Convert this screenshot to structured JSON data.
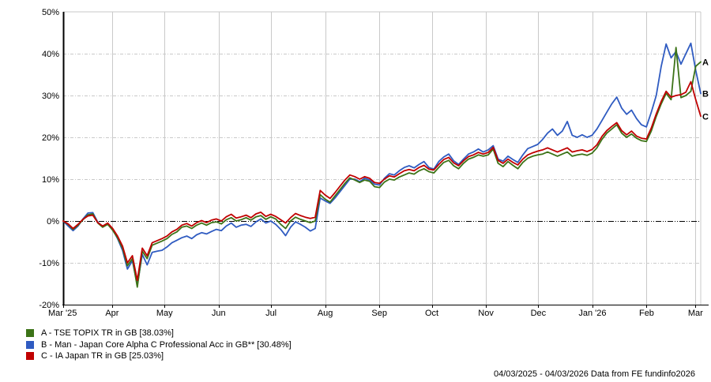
{
  "chart_data": {
    "type": "line",
    "footer": "04/03/2025 - 04/03/2026 Data from FE fundinfo2026",
    "colors": {
      "grid": "#c9c9c9",
      "axis": "#000000",
      "zero_line": "#000000",
      "background": "#ffffff"
    },
    "y_axis": {
      "unit": "%",
      "ylim": [
        -20,
        50
      ],
      "tick_values": [
        50,
        40,
        30,
        20,
        10,
        0,
        -10,
        -20
      ],
      "tick_labels": [
        "50%",
        "40%",
        "30%",
        "20%",
        "10%",
        "0%",
        "-10%",
        "-20%"
      ]
    },
    "x_axis": {
      "tick_labels": [
        "Mar '25",
        "Apr",
        "May",
        "Jun",
        "Jul",
        "Aug",
        "Sep",
        "Oct",
        "Nov",
        "Dec",
        "Jan '26",
        "Feb",
        "Mar"
      ],
      "tick_days": [
        0,
        28,
        58,
        89,
        119,
        150,
        181,
        211,
        242,
        272,
        303,
        334,
        362
      ],
      "span_days": 365
    },
    "series": [
      {
        "key": "A",
        "name": "TSE TOPIX TR in GB",
        "legend_label": "A - TSE TOPIX TR in GB [38.03%]",
        "final_value": 38.03,
        "color": "#3c7317",
        "values": [
          0,
          -0.8,
          -2,
          -1,
          0.3,
          1.5,
          1.7,
          -0.5,
          -1.5,
          -0.8,
          -2.2,
          -4,
          -6.5,
          -10.7,
          -9,
          -15.8,
          -7.2,
          -9,
          -5.8,
          -5.3,
          -4.8,
          -4.2,
          -3.2,
          -2.6,
          -1.5,
          -1.2,
          -1.8,
          -1,
          -0.5,
          -1,
          -0.4,
          -0.2,
          -0.7,
          0.3,
          0.8,
          0,
          0.3,
          0.8,
          0.2,
          1,
          1.3,
          0.4,
          1,
          0.5,
          -0.8,
          -1.8,
          0,
          0.9,
          0.4,
          0,
          -0.4,
          0,
          6.3,
          5.2,
          4.5,
          6,
          7.5,
          9,
          10.3,
          9.8,
          9.2,
          9.8,
          9.5,
          8.2,
          8,
          9.3,
          10,
          9.8,
          10.5,
          11,
          11.5,
          11.2,
          12,
          12.5,
          11.8,
          11.5,
          12.8,
          14,
          14.5,
          13.2,
          12.5,
          13.8,
          14.8,
          15.2,
          15.8,
          15.5,
          15.8,
          17.2,
          13.8,
          13,
          14.2,
          13.3,
          12.5,
          14,
          15,
          15.5,
          15.8,
          16,
          16.5,
          16,
          15.5,
          16,
          16.5,
          15.5,
          15.8,
          16,
          15.7,
          16.2,
          17.5,
          19.5,
          21,
          22,
          23,
          21,
          20,
          20.8,
          19.8,
          19.2,
          19,
          21.5,
          25,
          28,
          30.5,
          29,
          41.5,
          29.5,
          30,
          31,
          37,
          38.03
        ]
      },
      {
        "key": "B",
        "name": "Man - Japan Core Alpha C Professional Acc in GB**",
        "legend_label": "B - Man - Japan Core Alpha C Professional Acc in GB** [30.48%]",
        "final_value": 30.48,
        "color": "#2f5bc1",
        "values": [
          0,
          -1.2,
          -2.3,
          -1.2,
          0.5,
          1.9,
          2,
          -0.3,
          -1.3,
          -0.6,
          -2,
          -4.2,
          -7,
          -11.5,
          -9.5,
          -15.3,
          -8,
          -10.5,
          -7.5,
          -7.2,
          -7,
          -6.2,
          -5.2,
          -4.6,
          -4,
          -3.6,
          -4.2,
          -3.3,
          -2.8,
          -3.1,
          -2.5,
          -2,
          -2.3,
          -1.2,
          -0.5,
          -1.5,
          -1,
          -0.8,
          -1.3,
          -0.2,
          0.5,
          -0.5,
          0,
          -0.8,
          -2,
          -3.5,
          -1.5,
          -0.2,
          -0.8,
          -1.5,
          -2.4,
          -1.8,
          5.5,
          4.8,
          4.2,
          5.5,
          7,
          8.5,
          10,
          10,
          9.4,
          10.2,
          9.8,
          8.8,
          8.6,
          10.2,
          11.3,
          11,
          12,
          12.8,
          13.2,
          12.7,
          13.5,
          14.2,
          12.8,
          12.4,
          14.2,
          15.3,
          16,
          14.4,
          13.5,
          14.8,
          16,
          16.5,
          17.2,
          16.5,
          17,
          18,
          14.8,
          14.3,
          15.5,
          14.7,
          14,
          15.8,
          17.3,
          17.8,
          18.3,
          19.5,
          21,
          22,
          20.5,
          21.5,
          23.8,
          20.5,
          20,
          20.6,
          20,
          20.5,
          22,
          24,
          26,
          28,
          29.6,
          27,
          25.5,
          26.5,
          24.5,
          23,
          22.5,
          26,
          30,
          37,
          42.3,
          39,
          40.5,
          37.5,
          40,
          42.5,
          36,
          30.48
        ]
      },
      {
        "key": "C",
        "name": "IA Japan TR in GB",
        "legend_label": "C - IA Japan TR in GB [25.03%]",
        "final_value": 25.03,
        "color": "#c00000",
        "values": [
          0,
          -0.7,
          -1.8,
          -0.8,
          0.4,
          1.2,
          1.4,
          -0.4,
          -1.2,
          -0.5,
          -1.8,
          -3.6,
          -6,
          -10,
          -8.3,
          -14.2,
          -6.5,
          -8.3,
          -5.2,
          -4.7,
          -4.2,
          -3.6,
          -2.6,
          -2,
          -1,
          -0.6,
          -1.2,
          -0.4,
          0.1,
          -0.4,
          0.2,
          0.5,
          0,
          1,
          1.6,
          0.7,
          1,
          1.4,
          0.8,
          1.7,
          2.1,
          1.1,
          1.6,
          1.1,
          0.3,
          -0.5,
          0.8,
          1.8,
          1.3,
          0.9,
          0.6,
          0.9,
          7.3,
          6.2,
          5.4,
          6.8,
          8.3,
          9.8,
          11,
          10.6,
          10,
          10.6,
          10.2,
          9.2,
          9,
          10,
          10.8,
          10.5,
          11.3,
          12,
          12.3,
          12,
          12.8,
          13.3,
          12.4,
          12.2,
          13.5,
          14.7,
          15.2,
          13.9,
          13.2,
          14.4,
          15.4,
          15.8,
          16.4,
          16,
          16.4,
          17.6,
          14.5,
          13.8,
          14.8,
          14,
          13.4,
          14.8,
          15.8,
          16.3,
          16.7,
          17,
          17.5,
          17,
          16.5,
          17,
          17.5,
          16.5,
          16.8,
          17,
          16.6,
          17.1,
          18.2,
          20.2,
          21.6,
          22.6,
          23.5,
          21.6,
          20.6,
          21.5,
          20.3,
          19.8,
          19.6,
          22.2,
          25.6,
          28.6,
          31,
          29.6,
          30,
          30.2,
          30.8,
          33.3,
          29,
          25.03
        ]
      }
    ]
  }
}
